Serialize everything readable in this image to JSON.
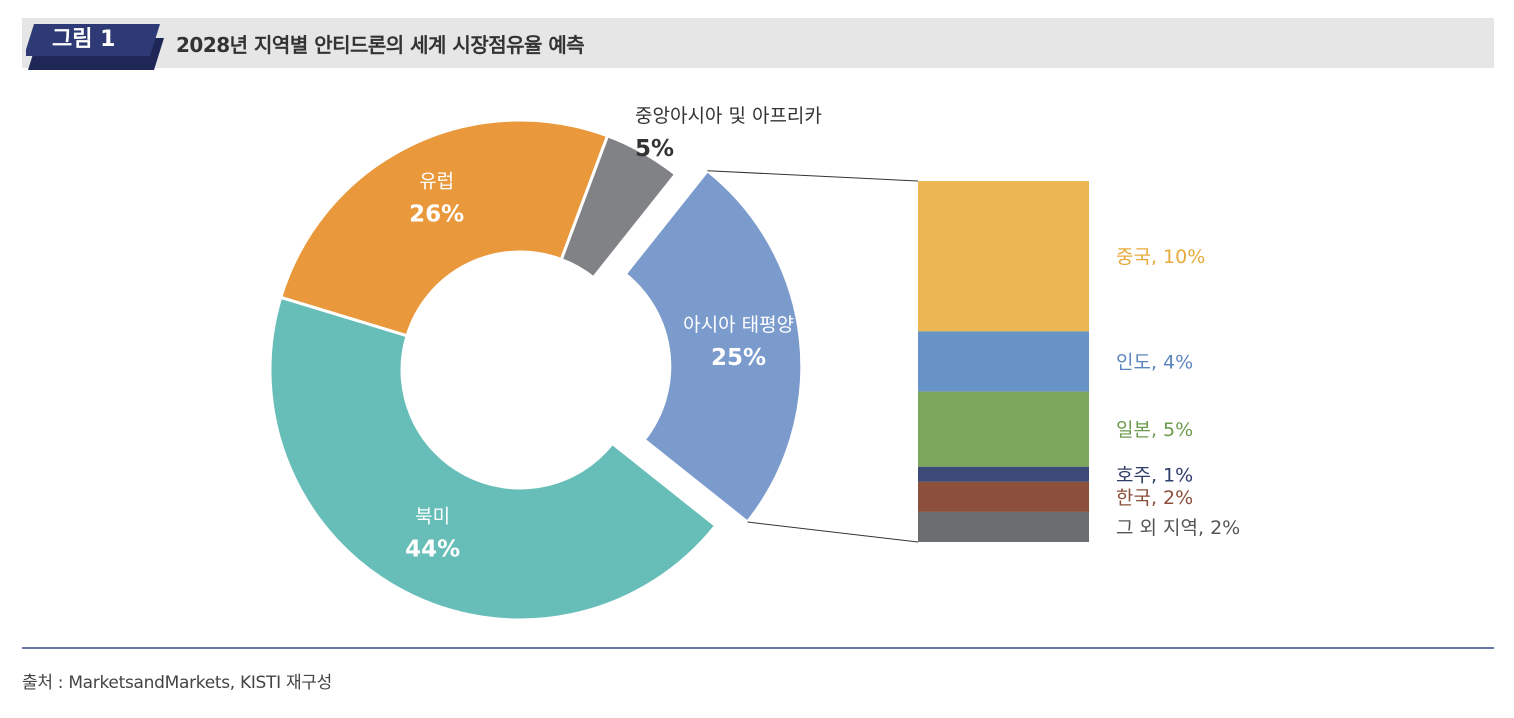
{
  "header": {
    "figure_label": "그림 1",
    "title": "2028년 지역별 안티드론의 세계 시장점유율 예측",
    "colors": {
      "bar": "#e6e6e6",
      "tab": "#2e3a75",
      "tab_dark": "#1e2756"
    }
  },
  "chart_data": [
    {
      "type": "pie",
      "style": "donut",
      "slices": [
        {
          "label": "아시아 태평양",
          "value": 25,
          "display": "25%",
          "color": "#7b9bcc",
          "exploded": true
        },
        {
          "label": "북미",
          "value": 44,
          "display": "44%",
          "color": "#67bdb8"
        },
        {
          "label": "유럽",
          "value": 26,
          "display": "26%",
          "color": "#e9983c"
        },
        {
          "label": "중앙아시아 및 아프리카",
          "value": 5,
          "display": "5%",
          "color": "#808285"
        }
      ]
    },
    {
      "type": "bar",
      "style": "stacked-single",
      "segments": [
        {
          "label": "중국, 10%",
          "value": 10,
          "color": "#eab752",
          "text_color": "#e8aa3c"
        },
        {
          "label": "인도, 4%",
          "value": 4,
          "color": "#6793c6",
          "text_color": "#5d86bf"
        },
        {
          "label": "일본, 5%",
          "value": 5,
          "color": "#7ea75e",
          "text_color": "#6e9a4e"
        },
        {
          "label": "호주, 1%",
          "value": 1,
          "color": "#3c4a78",
          "text_color": "#2e3c6a"
        },
        {
          "label": "한국, 2%",
          "value": 2,
          "color": "#8b4f3b",
          "text_color": "#8b4f3b"
        },
        {
          "label": "그 외 지역, 2%",
          "value": 2,
          "color": "#6b6d70",
          "text_color": "#555555"
        }
      ]
    }
  ],
  "footer": {
    "source": "출처 : MarketsandMarkets, KISTI 재구성"
  }
}
